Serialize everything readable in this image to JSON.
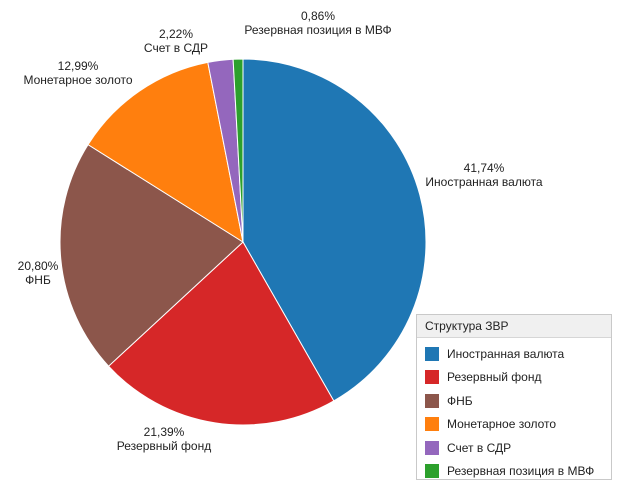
{
  "chart_data": {
    "type": "pie",
    "start": "12 o'clock, clockwise",
    "slices": [
      {
        "label": "Иностранная валюта",
        "value": 41.74,
        "value_text": "41,74%",
        "color": "#1f77b4"
      },
      {
        "label": "Резервный фонд",
        "value": 21.39,
        "value_text": "21,39%",
        "color": "#d62728"
      },
      {
        "label": "ФНБ",
        "value": 20.8,
        "value_text": "20,80%",
        "color": "#8c564b"
      },
      {
        "label": "Монетарное золото",
        "value": 12.99,
        "value_text": "12,99%",
        "color": "#ff7f0e"
      },
      {
        "label": "Счет в СДР",
        "value": 2.22,
        "value_text": "2,22%",
        "color": "#9467bd"
      },
      {
        "label": "Резервная позиция в МВФ",
        "value": 0.86,
        "value_text": "0,86%",
        "color": "#2ca02c"
      }
    ],
    "legend": {
      "title": "Структура ЗВР",
      "placement": "bottom-right"
    }
  }
}
